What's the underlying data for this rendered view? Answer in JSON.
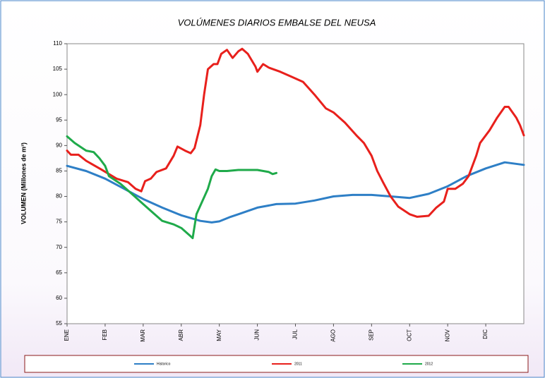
{
  "chart_data": {
    "type": "line",
    "title": "VOLÚMENES DIARIOS EMBALSE DEL NEUSA",
    "y_label": "VOLUMEN (Millones de m³)",
    "xlim": [
      0,
      12
    ],
    "xticks": [
      {
        "value": 0,
        "label": "ENE"
      },
      {
        "value": 1,
        "label": "FEB"
      },
      {
        "value": 2,
        "label": "MAR"
      },
      {
        "value": 3,
        "label": "ABR"
      },
      {
        "value": 4,
        "label": "MAY"
      },
      {
        "value": 5,
        "label": "JUN"
      },
      {
        "value": 6,
        "label": "JUL"
      },
      {
        "value": 7,
        "label": "AGO"
      },
      {
        "value": 8,
        "label": "SEP"
      },
      {
        "value": 9,
        "label": "OCT"
      },
      {
        "value": 10,
        "label": "NOV"
      },
      {
        "value": 11,
        "label": "DIC"
      }
    ],
    "ylim": [
      55,
      110
    ],
    "yticks": [
      55,
      60,
      65,
      70,
      75,
      80,
      85,
      90,
      95,
      100,
      105,
      110
    ],
    "grid": false,
    "legend": "bottom",
    "series": [
      {
        "name": "Historico",
        "color": "#2e7fc6",
        "x": [
          0,
          0.5,
          1,
          1.5,
          2,
          2.5,
          3,
          3.5,
          3.8,
          4,
          4.3,
          4.5,
          5,
          5.5,
          6,
          6.5,
          7,
          7.5,
          8,
          8.5,
          9,
          9.5,
          10,
          10.5,
          11,
          11.5,
          12
        ],
        "values": [
          86,
          85,
          83.5,
          81.5,
          79.5,
          77.8,
          76.3,
          75.2,
          74.9,
          75.1,
          76,
          76.5,
          77.8,
          78.5,
          78.6,
          79.2,
          80,
          80.3,
          80.3,
          80,
          79.7,
          80.5,
          82,
          84,
          85.5,
          86.7,
          86.2
        ]
      },
      {
        "name": "2011",
        "color": "#e8201c",
        "x": [
          0,
          0.1,
          0.3,
          0.5,
          0.9,
          1.3,
          1.6,
          1.8,
          1.95,
          2.05,
          2.2,
          2.35,
          2.6,
          2.8,
          2.9,
          3.1,
          3.25,
          3.35,
          3.5,
          3.6,
          3.7,
          3.85,
          3.95,
          4.05,
          4.2,
          4.35,
          4.5,
          4.6,
          4.75,
          4.95,
          5.0,
          5.15,
          5.3,
          5.6,
          5.9,
          6.2,
          6.5,
          6.8,
          7.0,
          7.3,
          7.6,
          7.8,
          8.0,
          8.15,
          8.3,
          8.5,
          8.7,
          9.0,
          9.2,
          9.5,
          9.7,
          9.9,
          10.0,
          10.2,
          10.4,
          10.55,
          10.75,
          10.85,
          11.1,
          11.3,
          11.5,
          11.6,
          11.8,
          11.9,
          12
        ],
        "values": [
          89,
          88.2,
          88.2,
          87,
          85.3,
          83.5,
          82.8,
          81.5,
          81,
          83,
          83.5,
          84.8,
          85.5,
          88,
          89.8,
          89,
          88.5,
          89.5,
          94,
          100,
          105,
          106,
          106,
          108,
          108.8,
          107.2,
          108.5,
          109,
          108,
          105.5,
          104.5,
          106,
          105.3,
          104.5,
          103.5,
          102.5,
          100,
          97.3,
          96.5,
          94.5,
          92,
          90.5,
          88,
          85,
          82.8,
          80,
          78,
          76.5,
          76,
          76.2,
          77.8,
          79,
          81.5,
          81.5,
          82.5,
          84,
          88,
          90.5,
          93,
          95.5,
          97.6,
          97.6,
          95.5,
          94,
          92
        ]
      },
      {
        "name": "2012",
        "color": "#1faa4a",
        "x": [
          0,
          0.2,
          0.5,
          0.7,
          0.85,
          1.0,
          1.1,
          1.4,
          1.7,
          2.0,
          2.3,
          2.5,
          2.8,
          3.0,
          3.2,
          3.3,
          3.4,
          3.55,
          3.7,
          3.8,
          3.9,
          4.0,
          4.2,
          4.5,
          5.0,
          5.3,
          5.4,
          5.5
        ],
        "values": [
          91.8,
          90.5,
          89,
          88.7,
          87.5,
          86,
          84,
          82.5,
          80.5,
          78.5,
          76.5,
          75.2,
          74.5,
          73.8,
          72.5,
          71.8,
          76.5,
          79,
          81.5,
          84,
          85.3,
          85,
          85,
          85.2,
          85.2,
          84.8,
          84.4,
          84.6
        ]
      }
    ]
  }
}
